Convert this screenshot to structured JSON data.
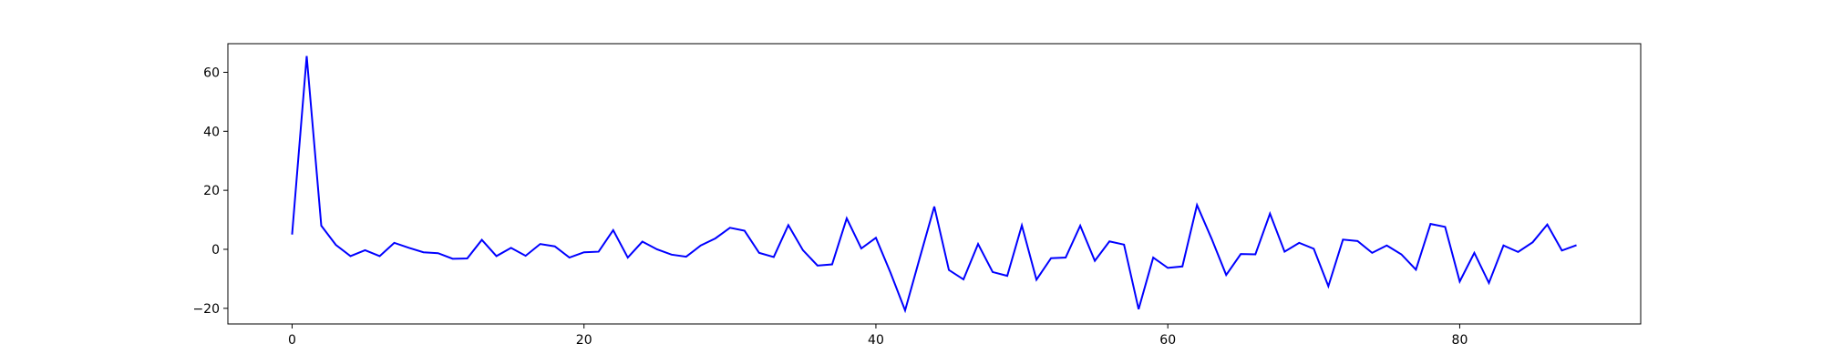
{
  "chart_data": {
    "type": "line",
    "title": "",
    "xlabel": "",
    "ylabel": "",
    "xlim": [
      -4.4,
      92.4
    ],
    "ylim": [
      -25.3,
      69.7
    ],
    "xticks": [
      0,
      20,
      40,
      60,
      80
    ],
    "yticks": [
      -20,
      0,
      20,
      40,
      60
    ],
    "xtick_labels": [
      "0",
      "20",
      "40",
      "60",
      "80"
    ],
    "ytick_labels": [
      "−20",
      "0",
      "20",
      "40",
      "60"
    ],
    "grid": false,
    "line_color": "#0000ff",
    "series": [
      {
        "x": [
          0,
          1,
          2,
          3,
          4,
          5,
          6,
          7,
          8,
          9,
          10,
          11,
          12,
          13,
          14,
          15,
          16,
          17,
          18,
          19,
          20,
          21,
          22,
          23,
          24,
          25,
          26,
          27,
          28,
          29,
          30,
          31,
          32,
          33,
          34,
          35,
          36,
          37,
          38,
          39,
          40,
          41,
          42,
          43,
          44,
          45,
          46,
          47,
          48,
          49,
          50,
          51,
          52,
          53,
          54,
          55,
          56,
          57,
          58,
          59,
          60,
          61,
          62,
          63,
          64,
          65,
          66,
          67,
          68,
          69,
          70,
          71,
          72,
          73,
          74,
          75,
          76,
          77,
          78,
          79,
          80,
          81,
          82,
          83,
          84,
          85,
          86,
          87,
          88
        ],
        "values": [
          5,
          65.5,
          8,
          1.5,
          -2.3,
          -0.3,
          -2.3,
          2.2,
          0.5,
          -1,
          -1.3,
          -3.2,
          -3.1,
          3.2,
          -2.3,
          0.5,
          -2.2,
          1.8,
          1,
          -2.8,
          -1,
          -0.8,
          6.5,
          -2.8,
          2.6,
          0,
          -1.8,
          -2.5,
          1.3,
          3.7,
          7.3,
          6.3,
          -1.2,
          -2.6,
          8.2,
          -0.3,
          -5.5,
          -5.1,
          10.5,
          0.3,
          3.9,
          -7.9,
          -20.7,
          -3,
          14.5,
          -7,
          -10.2,
          1.8,
          -7.7,
          -9,
          8.1,
          -10.3,
          -3,
          -2.8,
          8,
          -3.9,
          2.7,
          1.6,
          -20.3,
          -2.8,
          -6.3,
          -5.8,
          15,
          3.6,
          -8.7,
          -1.6,
          -1.7,
          12.1,
          -0.8,
          2.2,
          0.2,
          -12.5,
          3.3,
          2.8,
          -1.2,
          1.3,
          -1.7,
          -6.9,
          8.6,
          7.6,
          -10.9,
          -1.2,
          -11.4,
          1.3,
          -0.9,
          2.4,
          8.4,
          -0.4,
          1.4
        ]
      }
    ]
  }
}
